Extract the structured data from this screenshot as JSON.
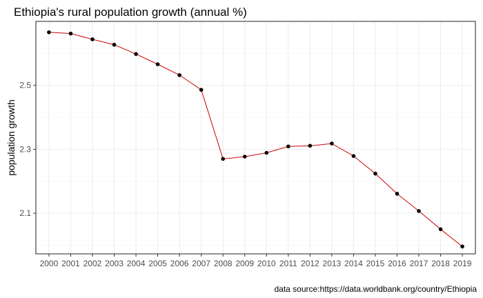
{
  "chart_data": {
    "type": "line",
    "title": "Ethiopia's rural population growth (annual %)",
    "xlabel": "",
    "ylabel": "population growth",
    "caption": "data source:https://data.worldbank.org/country/Ethiopia",
    "x": [
      2000,
      2001,
      2002,
      2003,
      2004,
      2005,
      2006,
      2007,
      2008,
      2009,
      2010,
      2011,
      2012,
      2013,
      2014,
      2015,
      2016,
      2017,
      2018,
      2019
    ],
    "series": [
      {
        "values": [
          2.666,
          2.662,
          2.644,
          2.627,
          2.598,
          2.566,
          2.532,
          2.486,
          2.27,
          2.277,
          2.289,
          2.309,
          2.311,
          2.318,
          2.279,
          2.224,
          2.161,
          2.107,
          2.05,
          1.996
        ]
      }
    ],
    "y_ticks": [
      2.1,
      2.3,
      2.5
    ],
    "ylim": [
      1.973,
      2.7
    ],
    "grid": true,
    "colors": {
      "line": "#cc0000",
      "point": "#000000",
      "grid": "#ebebeb"
    }
  }
}
